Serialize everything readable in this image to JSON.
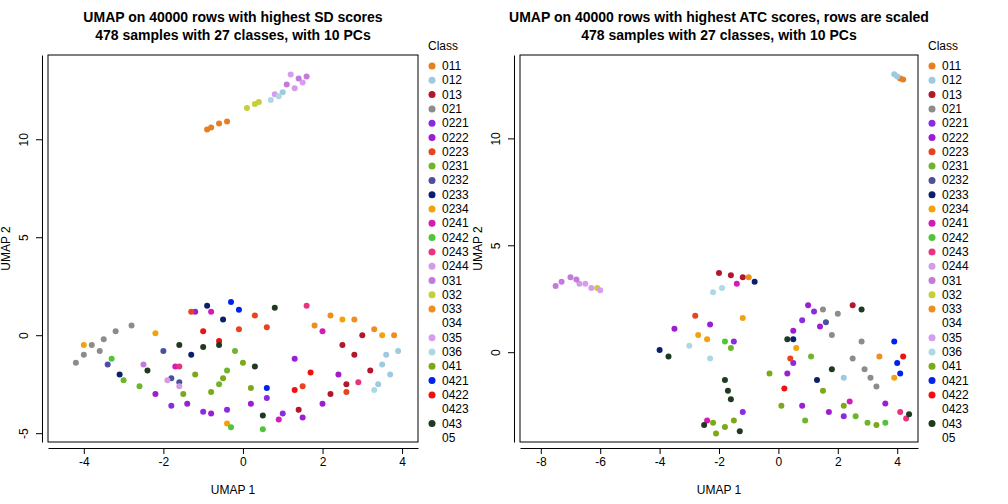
{
  "chart_data": [
    {
      "type": "scatter",
      "marker": "circle",
      "legend": "right",
      "title": "UMAP on 40000 rows with highest SD scores",
      "subtitle": "478 samples with 27 classes, with 10 PCs",
      "x_label": "UMAP 1",
      "y_label": "UMAP 2",
      "legend_title": "Class",
      "xlim": [
        -4.9,
        4.4
      ],
      "ylim": [
        -5.45,
        14.3
      ],
      "xticks": [
        -4,
        -2,
        0,
        2,
        4
      ],
      "yticks": [
        -5,
        0,
        5,
        10
      ],
      "series": [
        {
          "name": "011",
          "color": "#E67E22",
          "x": [
            -0.9,
            -0.8,
            -0.6,
            -0.4
          ],
          "y": [
            10.5,
            10.6,
            10.8,
            10.9
          ]
        },
        {
          "name": "012",
          "color": "#9ECAE1",
          "x": [
            3.5,
            3.7,
            3.4,
            3.6,
            3.9,
            1.0
          ],
          "y": [
            -1.5,
            -2.0,
            -2.5,
            -1.0,
            -0.8,
            12.4
          ]
        },
        {
          "name": "013",
          "color": "#B2182B",
          "x": [
            2.5,
            2.8,
            3.0,
            3.2,
            2.6,
            1.4,
            2.2
          ],
          "y": [
            -0.5,
            -1.0,
            0.0,
            -1.8,
            -2.5,
            -3.8,
            -3.0
          ]
        },
        {
          "name": "021",
          "color": "#8C8C8C",
          "x": [
            -4.0,
            -3.8,
            -3.5,
            -3.2,
            -2.8,
            -4.2,
            -3.6
          ],
          "y": [
            -1.0,
            -0.5,
            -0.2,
            0.2,
            0.5,
            -1.4,
            -0.8
          ]
        },
        {
          "name": "0221",
          "color": "#8A2BE2",
          "x": [
            -1.8,
            -1.0,
            -0.4,
            1.0,
            0.6
          ],
          "y": [
            -3.6,
            -3.9,
            -3.8,
            -4.0,
            -3.2
          ]
        },
        {
          "name": "0222",
          "color": "#9B1FD0",
          "x": [
            -2.2,
            -1.4,
            -0.8,
            0.2,
            1.5,
            2.0,
            1.3,
            2.4,
            -1.2
          ],
          "y": [
            -3.0,
            -3.5,
            -4.0,
            -3.5,
            -4.2,
            -3.5,
            -1.2,
            -2.0,
            1.2
          ]
        },
        {
          "name": "0223",
          "color": "#E8421F",
          "x": [
            -1.3,
            0.3,
            0.6,
            1.5,
            2.6,
            -0.1
          ],
          "y": [
            1.2,
            1.0,
            0.4,
            -2.6,
            -2.9,
            0.3
          ]
        },
        {
          "name": "0231",
          "color": "#6FB52C",
          "x": [
            -3.0,
            -2.6,
            -0.6,
            -0.4,
            -0.2
          ],
          "y": [
            -2.3,
            -2.6,
            -2.5,
            -1.8,
            -0.8
          ]
        },
        {
          "name": "0232",
          "color": "#4B4F9C",
          "x": [
            -3.4,
            -2.0,
            -1.8,
            -1.6
          ],
          "y": [
            -1.5,
            -0.8,
            -2.2,
            -2.4
          ]
        },
        {
          "name": "0233",
          "color": "#0B1F6E",
          "x": [
            -3.1,
            -1.3,
            -0.9,
            -0.5
          ],
          "y": [
            -2.0,
            -1.0,
            1.5,
            0.8
          ]
        },
        {
          "name": "0234",
          "color": "#F2A20C",
          "x": [
            -4.0,
            2.5,
            3.5,
            -2.2,
            -0.4
          ],
          "y": [
            -0.5,
            0.8,
            0.0,
            0.1,
            -4.5
          ]
        },
        {
          "name": "0241",
          "color": "#D41BB5",
          "x": [
            -0.8,
            0.9,
            -1.7,
            2.0
          ],
          "y": [
            1.2,
            -4.3,
            -1.6,
            0.2
          ]
        },
        {
          "name": "0242",
          "color": "#4FC63A",
          "x": [
            -0.3,
            0.5,
            -3.3
          ],
          "y": [
            -4.7,
            -4.8,
            -1.2
          ]
        },
        {
          "name": "0243",
          "color": "#E8337E",
          "x": [
            1.6,
            2.9,
            -1.6
          ],
          "y": [
            1.5,
            -2.4,
            -1.6
          ]
        },
        {
          "name": "0244",
          "color": "#D49BE6",
          "x": [
            -1.9,
            -1.6,
            1.3
          ],
          "y": [
            -2.3,
            -2.6,
            12.6
          ]
        },
        {
          "name": "031",
          "color": "#C27ADB",
          "x": [
            -2.5,
            1.1,
            1.4,
            1.6
          ],
          "y": [
            -1.5,
            12.8,
            13.1,
            13.2
          ]
        },
        {
          "name": "032",
          "color": "#C5CF3A",
          "x": [
            0.1,
            0.3,
            0.4
          ],
          "y": [
            11.6,
            11.8,
            11.9
          ]
        },
        {
          "name": "033",
          "color": "#EE8E1C",
          "x": [
            2.2,
            2.8,
            3.3,
            1.8,
            3.8
          ],
          "y": [
            1.0,
            0.8,
            0.3,
            0.5,
            0.0
          ]
        },
        {
          "name": "034",
          "color": "#FFFFFF",
          "x": [],
          "y": []
        },
        {
          "name": "035",
          "color": "#D79CF0",
          "x": [
            0.8,
            1.2,
            1.5
          ],
          "y": [
            12.3,
            13.3,
            12.9
          ]
        },
        {
          "name": "036",
          "color": "#ADD8E6",
          "x": [
            3.3,
            0.7,
            0.9
          ],
          "y": [
            -2.8,
            12.0,
            12.2
          ]
        },
        {
          "name": "041",
          "color": "#7BA91A",
          "x": [
            -1.2,
            -0.8,
            -0.5,
            0.0,
            0.2,
            -1.5
          ],
          "y": [
            -2.0,
            -2.9,
            -2.2,
            -1.4,
            -2.7,
            -3.0
          ]
        },
        {
          "name": "0421",
          "color": "#0022EE",
          "x": [
            -0.3,
            -0.1,
            0.6
          ],
          "y": [
            1.7,
            1.3,
            -2.7
          ]
        },
        {
          "name": "0422",
          "color": "#F01010",
          "x": [
            -1.0,
            1.7,
            -0.6,
            1.3
          ],
          "y": [
            0.2,
            -1.9,
            -0.3,
            -2.8
          ]
        },
        {
          "name": "0423",
          "color": "#FFFFFF",
          "x": [],
          "y": []
        },
        {
          "name": "043",
          "color": "#1E3B20",
          "x": [
            -2.4,
            -1.6,
            -1.0,
            0.3,
            0.5,
            -0.6,
            0.8
          ],
          "y": [
            -1.8,
            -0.5,
            -0.6,
            -1.6,
            -4.1,
            -0.5,
            1.4
          ]
        },
        {
          "name": "05",
          "color": "#FFFFFF",
          "x": [],
          "y": []
        }
      ]
    },
    {
      "type": "scatter",
      "marker": "circle",
      "legend": "right",
      "title": "UMAP on 40000 rows with highest ATC scores, rows are scaled",
      "subtitle": "478 samples with 27 classes, with 10 PCs",
      "x_label": "UMAP 1",
      "y_label": "UMAP 2",
      "legend_title": "Class",
      "xlim": [
        -8.7,
        4.7
      ],
      "ylim": [
        -4.2,
        13.9
      ],
      "xticks": [
        -8,
        -6,
        -4,
        -2,
        0,
        2,
        4
      ],
      "yticks": [
        0,
        5,
        10
      ],
      "series": [
        {
          "name": "011",
          "color": "#E67E22",
          "x": [
            4.1,
            4.2
          ],
          "y": [
            12.8,
            12.75
          ]
        },
        {
          "name": "012",
          "color": "#9ECAE1",
          "x": [
            3.9,
            4.0,
            2.2
          ],
          "y": [
            13.0,
            12.9,
            -1.2
          ]
        },
        {
          "name": "013",
          "color": "#B2182B",
          "x": [
            -2.0,
            -1.6,
            -1.2,
            2.5
          ],
          "y": [
            3.7,
            3.6,
            3.5,
            2.2
          ]
        },
        {
          "name": "021",
          "color": "#8C8C8C",
          "x": [
            1.5,
            2.0,
            1.8,
            2.8,
            2.9,
            3.1,
            2.5,
            3.3
          ],
          "y": [
            2.0,
            1.8,
            0.8,
            0.5,
            -0.8,
            -1.2,
            -0.3,
            -1.6
          ]
        },
        {
          "name": "0221",
          "color": "#8A2BE2",
          "x": [
            -1.2,
            -1.5,
            0.8,
            1.2,
            0.5,
            2.2
          ],
          "y": [
            -2.8,
            0.5,
            1.5,
            1.9,
            -0.5,
            -3.0
          ]
        },
        {
          "name": "0222",
          "color": "#9B1FD0",
          "x": [
            -3.5,
            -2.3,
            1.0,
            1.4,
            0.3,
            0.8,
            1.7,
            3.6,
            0.5
          ],
          "y": [
            1.1,
            1.3,
            2.2,
            1.2,
            -1.0,
            -2.5,
            -2.8,
            -2.4,
            1.0
          ]
        },
        {
          "name": "0223",
          "color": "#E8421F",
          "x": [
            -2.8,
            0.4
          ],
          "y": [
            1.7,
            -0.3
          ]
        },
        {
          "name": "0231",
          "color": "#6FB52C",
          "x": [
            -1.6,
            2.6,
            3.0,
            1.1,
            0.9
          ],
          "y": [
            0.2,
            -3.0,
            -3.3,
            -0.2,
            -3.2
          ]
        },
        {
          "name": "0232",
          "color": "#4B4F9C",
          "x": [
            1.6
          ],
          "y": [
            1.4
          ]
        },
        {
          "name": "0233",
          "color": "#0B1F6E",
          "x": [
            -0.8,
            -4.0,
            0.5,
            1.3
          ],
          "y": [
            3.3,
            0.1,
            0.6,
            -1.3
          ]
        },
        {
          "name": "0234",
          "color": "#F2A20C",
          "x": [
            -2.7,
            -2.4,
            -1.2,
            3.9,
            0.6
          ],
          "y": [
            0.8,
            0.6,
            1.6,
            -1.2,
            0.2
          ]
        },
        {
          "name": "0241",
          "color": "#D41BB5",
          "x": [
            -1.4,
            -2.4,
            2.4
          ],
          "y": [
            3.2,
            -3.2,
            -2.3
          ]
        },
        {
          "name": "0242",
          "color": "#4FC63A",
          "x": [
            -1.8,
            3.6
          ],
          "y": [
            0.5,
            -3.3
          ]
        },
        {
          "name": "0243",
          "color": "#E8337E",
          "x": [
            4.1,
            4.3
          ],
          "y": [
            -2.8,
            -3.1
          ]
        },
        {
          "name": "0244",
          "color": "#D49BE6",
          "x": [
            -6.7
          ],
          "y": [
            3.2
          ]
        },
        {
          "name": "031",
          "color": "#C27ADB",
          "x": [
            -7.3,
            -7.0,
            -6.8,
            -7.5
          ],
          "y": [
            3.3,
            3.5,
            3.4,
            3.1
          ]
        },
        {
          "name": "032",
          "color": "#C5CF3A",
          "x": [
            -6.1
          ],
          "y": [
            3.0
          ]
        },
        {
          "name": "033",
          "color": "#EE8E1C",
          "x": [
            -1.0,
            3.4
          ],
          "y": [
            3.5,
            -0.2
          ]
        },
        {
          "name": "034",
          "color": "#FFFFFF",
          "x": [],
          "y": []
        },
        {
          "name": "035",
          "color": "#D79CF0",
          "x": [
            -6.5,
            -6.3,
            -6.0
          ],
          "y": [
            3.2,
            3.0,
            2.9
          ]
        },
        {
          "name": "036",
          "color": "#ADD8E6",
          "x": [
            -1.9,
            -2.2,
            -2.3,
            -3.0
          ],
          "y": [
            3.0,
            2.8,
            -0.3,
            0.3
          ]
        },
        {
          "name": "041",
          "color": "#7BA91A",
          "x": [
            -2.2,
            -1.8,
            -1.5,
            -2.1,
            2.2,
            3.3,
            1.5,
            0.1,
            -0.3
          ],
          "y": [
            -3.3,
            -3.5,
            -3.2,
            -3.8,
            -2.5,
            -3.4,
            -1.8,
            -2.5,
            -1.0
          ]
        },
        {
          "name": "0421",
          "color": "#0022EE",
          "x": [
            4.0,
            4.1,
            3.9
          ],
          "y": [
            -0.5,
            -1.0,
            0.5
          ]
        },
        {
          "name": "0422",
          "color": "#F01010",
          "x": [
            4.2,
            0.2
          ],
          "y": [
            -0.2,
            -1.7
          ]
        },
        {
          "name": "0423",
          "color": "#FFFFFF",
          "x": [],
          "y": []
        },
        {
          "name": "043",
          "color": "#1E3B20",
          "x": [
            -3.7,
            -1.8,
            -1.7,
            -1.6,
            -2.5,
            -1.3,
            4.4,
            2.8,
            0.3,
            1.8
          ],
          "y": [
            -0.2,
            -1.3,
            -1.8,
            -2.2,
            -3.4,
            -3.7,
            -2.9,
            2.0,
            0.6,
            -0.8
          ]
        },
        {
          "name": "05",
          "color": "#FFFFFF",
          "x": [],
          "y": []
        }
      ]
    }
  ]
}
